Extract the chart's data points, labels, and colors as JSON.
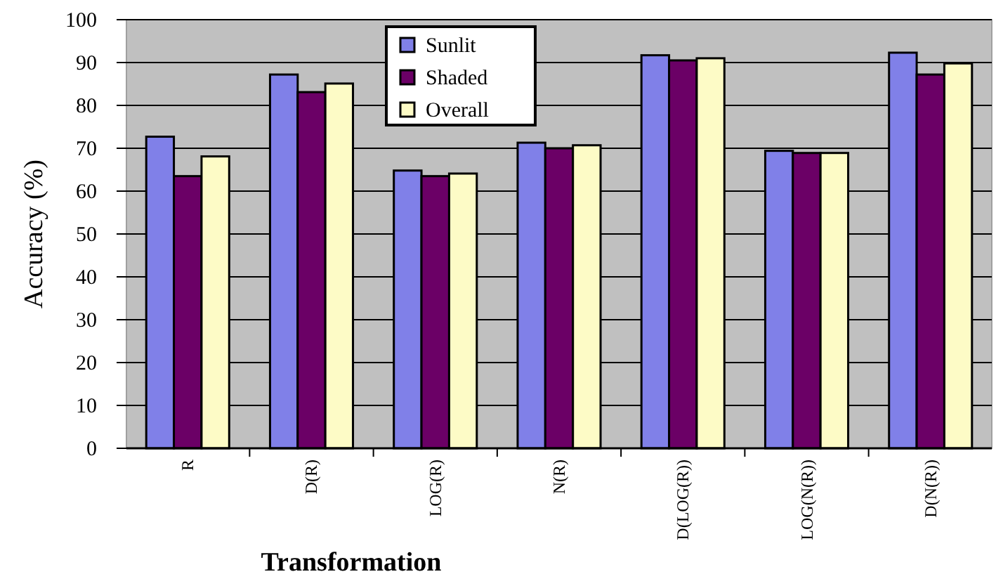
{
  "chart_data": {
    "type": "bar",
    "xlabel": "Transformation",
    "ylabel": "Accuracy (%)",
    "categories": [
      "R",
      "D(R)",
      "LOG(R)",
      "N(R)",
      "D(LOG(R))",
      "LOG(N(R))",
      "D(N(R))"
    ],
    "series": [
      {
        "name": "Sunlit",
        "color": "#8080e8",
        "values": [
          72.7,
          87.2,
          64.8,
          71.3,
          91.7,
          69.4,
          92.3
        ]
      },
      {
        "name": "Shaded",
        "color": "#6b0066",
        "values": [
          63.5,
          83.1,
          63.5,
          70.0,
          90.5,
          68.9,
          87.2
        ]
      },
      {
        "name": "Overall",
        "color": "#fdfbc6",
        "values": [
          68.1,
          85.1,
          64.1,
          70.7,
          91.0,
          68.9,
          89.8
        ]
      }
    ],
    "ylim": [
      0,
      100
    ],
    "yticks": [
      0,
      10,
      20,
      30,
      40,
      50,
      60,
      70,
      80,
      90,
      100
    ],
    "grid": "y",
    "legend": "top"
  }
}
